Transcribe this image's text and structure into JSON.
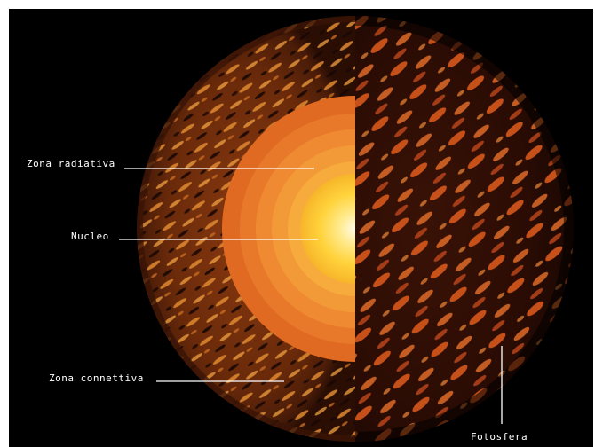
{
  "diagram": {
    "labels": {
      "radiative_zone": "Zona radiativa",
      "core": "Nucleo",
      "convective_zone": "Zona connettiva",
      "photosphere": "Fotosfera"
    }
  },
  "colors": {
    "background": "#000000",
    "page": "#ffffff",
    "core_center": "#fff8e0",
    "core_mid": "#ffd23a",
    "radiative_outer": "#e06a22",
    "convective_base": "#6a2a0a",
    "convective_streak": "#e08a30",
    "photosphere_streak": "#d8581c",
    "leader_line": "#ffffff"
  }
}
